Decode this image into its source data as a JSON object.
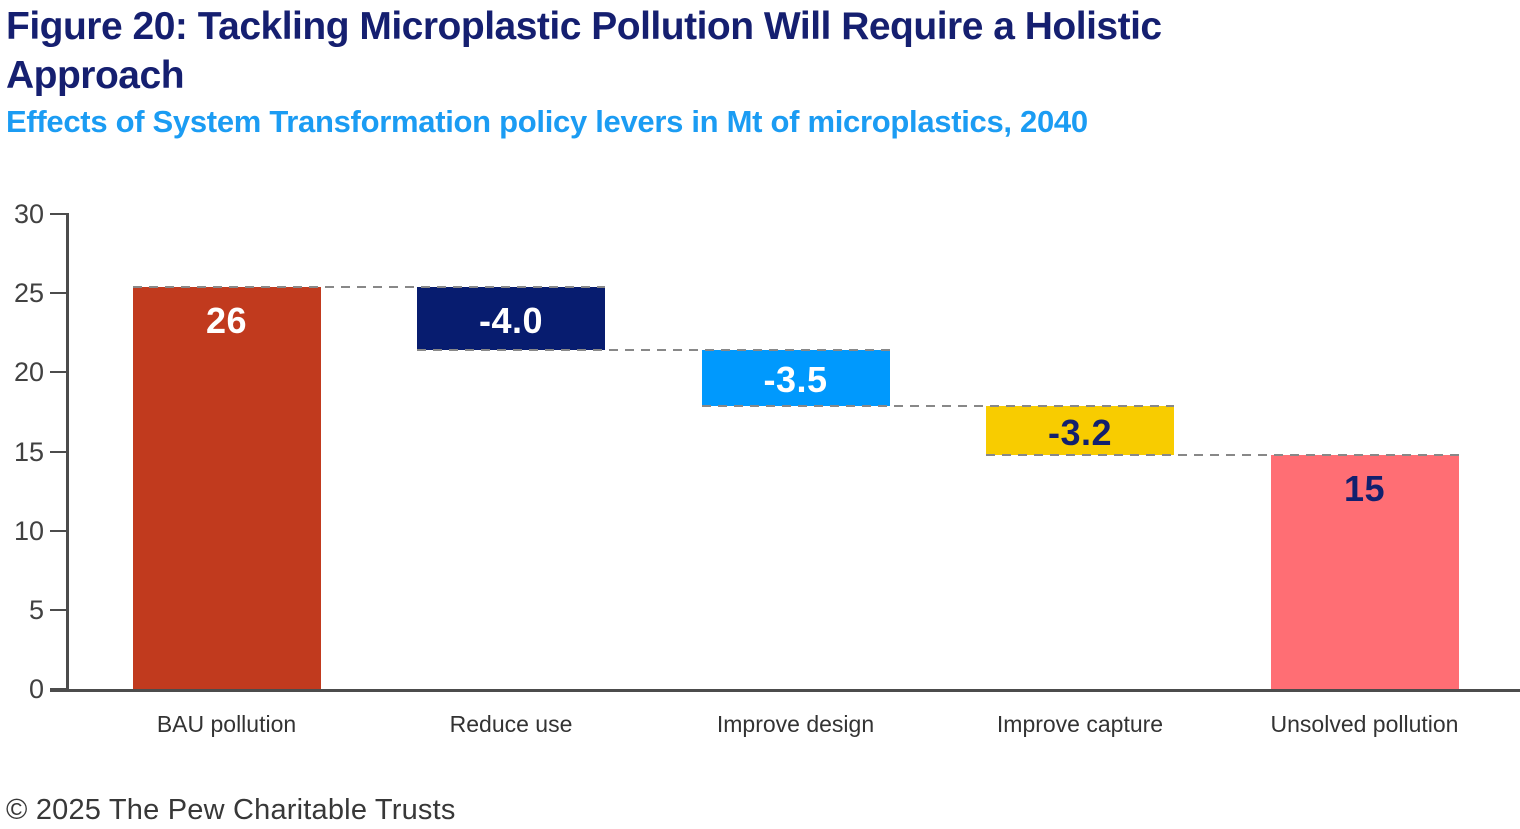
{
  "header": {
    "title_line1": "Figure 20: Tackling Microplastic Pollution Will Require a Holistic",
    "title_line2": "Approach",
    "subtitle": "Effects of System Transformation policy levers in Mt of microplastics, 2040"
  },
  "footer": {
    "copyright": "© 2025 The Pew Charitable Trusts"
  },
  "colors": {
    "title_navy": "#151f70",
    "subtitle_blue": "#1b9cf3",
    "axis_gray": "#4c4c4c",
    "connector_gray": "#888888",
    "bar_bau_red": "#c13a1e",
    "bar_reduce_navy": "#071c6f",
    "bar_design_blue": "#0099fd",
    "bar_capture_yellow": "#f8cc00",
    "bar_unsolved_pink": "#ff6e74",
    "label_white": "#ffffff",
    "label_navy": "#12206e"
  },
  "chart_data": {
    "type": "bar",
    "subtype": "waterfall",
    "title": "Figure 20: Tackling Microplastic Pollution Will Require a Holistic Approach",
    "subtitle": "Effects of System Transformation policy levers in Mt of microplastics, 2040",
    "unit": "Mt of microplastics",
    "year": "2040",
    "xlabel": "",
    "ylabel": "",
    "ylim": [
      0,
      30
    ],
    "yticks": [
      0,
      5,
      10,
      15,
      20,
      25,
      30
    ],
    "grid": false,
    "legend": false,
    "categories": [
      "BAU pollution",
      "Reduce use",
      "Improve design",
      "Improve capture",
      "Unsolved pollution"
    ],
    "values": [
      26,
      -4.0,
      -3.5,
      -3.2,
      15
    ],
    "bars": [
      {
        "category": "BAU pollution",
        "label": "26",
        "plot_start": 0,
        "plot_end": 25.4,
        "color": "#c13a1e",
        "label_color": "#ffffff",
        "label_pos": "top"
      },
      {
        "category": "Reduce use",
        "label": "-4.0",
        "plot_start": 25.4,
        "plot_end": 21.4,
        "color": "#071c6f",
        "label_color": "#ffffff",
        "label_pos": "middle"
      },
      {
        "category": "Improve design",
        "label": "-3.5",
        "plot_start": 21.4,
        "plot_end": 17.9,
        "color": "#0099fd",
        "label_color": "#ffffff",
        "label_pos": "middle"
      },
      {
        "category": "Improve capture",
        "label": "-3.2",
        "plot_start": 17.9,
        "plot_end": 14.75,
        "color": "#f8cc00",
        "label_color": "#12206e",
        "label_pos": "middle"
      },
      {
        "category": "Unsolved pollution",
        "label": "15",
        "plot_start": 14.75,
        "plot_end": 0,
        "color": "#ff6e74",
        "label_color": "#12206e",
        "label_pos": "top"
      }
    ]
  }
}
